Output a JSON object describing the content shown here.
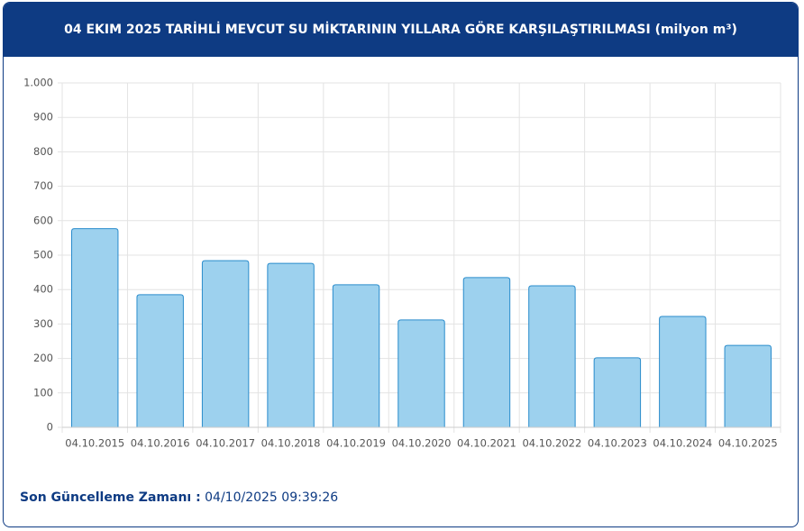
{
  "chart_data": {
    "type": "bar",
    "title": "04 EKIM 2025 TARİHLİ MEVCUT SU MİKTARININ YILLARA GÖRE KARŞILAŞTIRILMASI (milyon m³)",
    "categories": [
      "04.10.2015",
      "04.10.2016",
      "04.10.2017",
      "04.10.2018",
      "04.10.2019",
      "04.10.2020",
      "04.10.2021",
      "04.10.2022",
      "04.10.2023",
      "04.10.2024",
      "04.10.2025"
    ],
    "values": [
      577,
      385,
      484,
      476,
      414,
      312,
      435,
      411,
      202,
      322,
      238
    ],
    "color": "#9dd1ee",
    "border_color": "#2a8ccc",
    "ylim": [
      0,
      1000
    ],
    "yticks": [
      0,
      100,
      200,
      300,
      400,
      500,
      600,
      700,
      800,
      900,
      {
        "value": 1000,
        "label": "1.000"
      }
    ],
    "grid": true
  },
  "footer": {
    "label": "Son Güncelleme Zamanı :",
    "value": "04/10/2025 09:39:26"
  }
}
